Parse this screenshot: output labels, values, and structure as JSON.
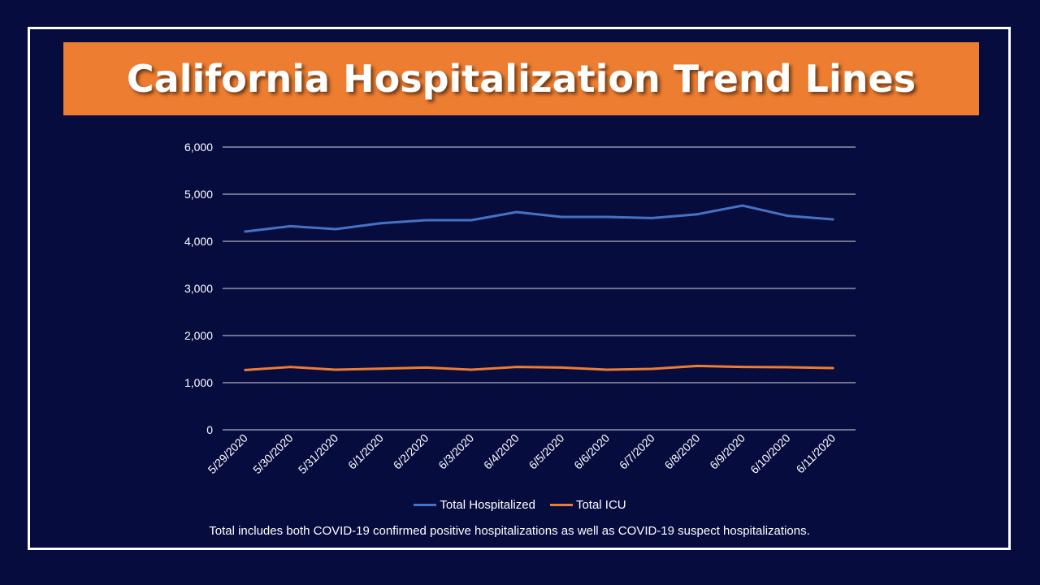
{
  "title": "California Hospitalization Trend Lines",
  "note": "Total includes both COVID-19 confirmed positive hospitalizations as well as COVID-19 suspect hospitalizations.",
  "colors": {
    "background": "#070c3e",
    "banner": "#ed7d31",
    "hospitalized": "#4472c4",
    "icu": "#ed7d31",
    "grid": "#d9d9d9"
  },
  "chart_data": {
    "type": "line",
    "title": "",
    "xlabel": "",
    "ylabel": "",
    "ylim": [
      0,
      6000
    ],
    "yticks": [
      "0",
      "1,000",
      "2,000",
      "3,000",
      "4,000",
      "5,000",
      "6,000"
    ],
    "grid": true,
    "legend_position": "bottom",
    "categories": [
      "5/29/2020",
      "5/30/2020",
      "5/31/2020",
      "6/1/2020",
      "6/2/2020",
      "6/3/2020",
      "6/4/2020",
      "6/5/2020",
      "6/6/2020",
      "6/7/2020",
      "6/8/2020",
      "6/9/2020",
      "6/10/2020",
      "6/11/2020"
    ],
    "series": [
      {
        "name": "Total Hospitalized",
        "color": "#4472c4",
        "values": [
          4207,
          4321,
          4259,
          4384,
          4448,
          4448,
          4621,
          4517,
          4517,
          4494,
          4574,
          4759,
          4540,
          4466
        ]
      },
      {
        "name": "Total ICU",
        "color": "#ed7d31",
        "values": [
          1269,
          1333,
          1276,
          1298,
          1321,
          1276,
          1333,
          1321,
          1276,
          1293,
          1356,
          1333,
          1327,
          1310
        ]
      }
    ]
  }
}
